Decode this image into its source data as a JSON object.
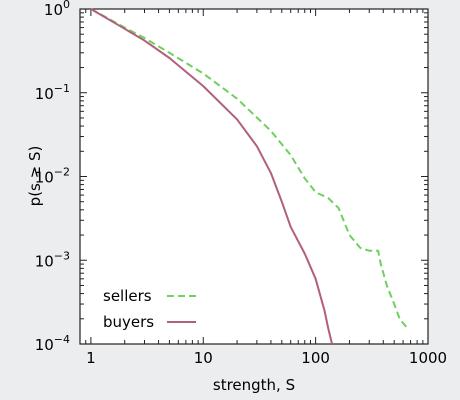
{
  "chart_data": {
    "type": "line",
    "title": "",
    "xlabel": "strength, S",
    "ylabel": "p(s ≥ S)",
    "x_scale": "log",
    "y_scale": "log",
    "xlim": [
      0.8,
      1000
    ],
    "ylim": [
      0.0001,
      1
    ],
    "x_ticks": [
      {
        "value": 1,
        "label": "1"
      },
      {
        "value": 10,
        "label": "10"
      },
      {
        "value": 100,
        "label": "100"
      },
      {
        "value": 1000,
        "label": "1000"
      }
    ],
    "y_ticks": [
      {
        "value": 1,
        "base": "10",
        "exp": "0"
      },
      {
        "value": 0.1,
        "base": "10",
        "exp": "−1"
      },
      {
        "value": 0.01,
        "base": "10",
        "exp": "−2"
      },
      {
        "value": 0.001,
        "base": "10",
        "exp": "−3"
      },
      {
        "value": 0.0001,
        "base": "10",
        "exp": "−4"
      }
    ],
    "grid": false,
    "legend_position": "bottom-left",
    "series": [
      {
        "name": "sellers",
        "color": "#6fcf5f",
        "dash": "dashed",
        "points": [
          [
            1,
            1
          ],
          [
            2,
            0.6
          ],
          [
            3,
            0.45
          ],
          [
            5,
            0.3
          ],
          [
            10,
            0.17
          ],
          [
            20,
            0.085
          ],
          [
            40,
            0.035
          ],
          [
            60,
            0.018
          ],
          [
            80,
            0.0095
          ],
          [
            100,
            0.0065
          ],
          [
            130,
            0.0055
          ],
          [
            160,
            0.0042
          ],
          [
            200,
            0.002
          ],
          [
            250,
            0.0014
          ],
          [
            300,
            0.0013
          ],
          [
            360,
            0.0013
          ],
          [
            380,
            0.0009
          ],
          [
            430,
            0.0005
          ],
          [
            500,
            0.0003
          ],
          [
            560,
            0.0002
          ],
          [
            640,
            0.00016
          ]
        ]
      },
      {
        "name": "buyers",
        "color": "#b0607b",
        "dash": "solid",
        "points": [
          [
            1,
            1
          ],
          [
            2,
            0.58
          ],
          [
            3,
            0.42
          ],
          [
            5,
            0.26
          ],
          [
            10,
            0.12
          ],
          [
            20,
            0.048
          ],
          [
            30,
            0.023
          ],
          [
            40,
            0.011
          ],
          [
            50,
            0.005
          ],
          [
            60,
            0.0025
          ],
          [
            80,
            0.0012
          ],
          [
            100,
            0.0006
          ],
          [
            120,
            0.00025
          ],
          [
            130,
            0.00015
          ],
          [
            140,
            0.0001
          ]
        ]
      }
    ]
  }
}
